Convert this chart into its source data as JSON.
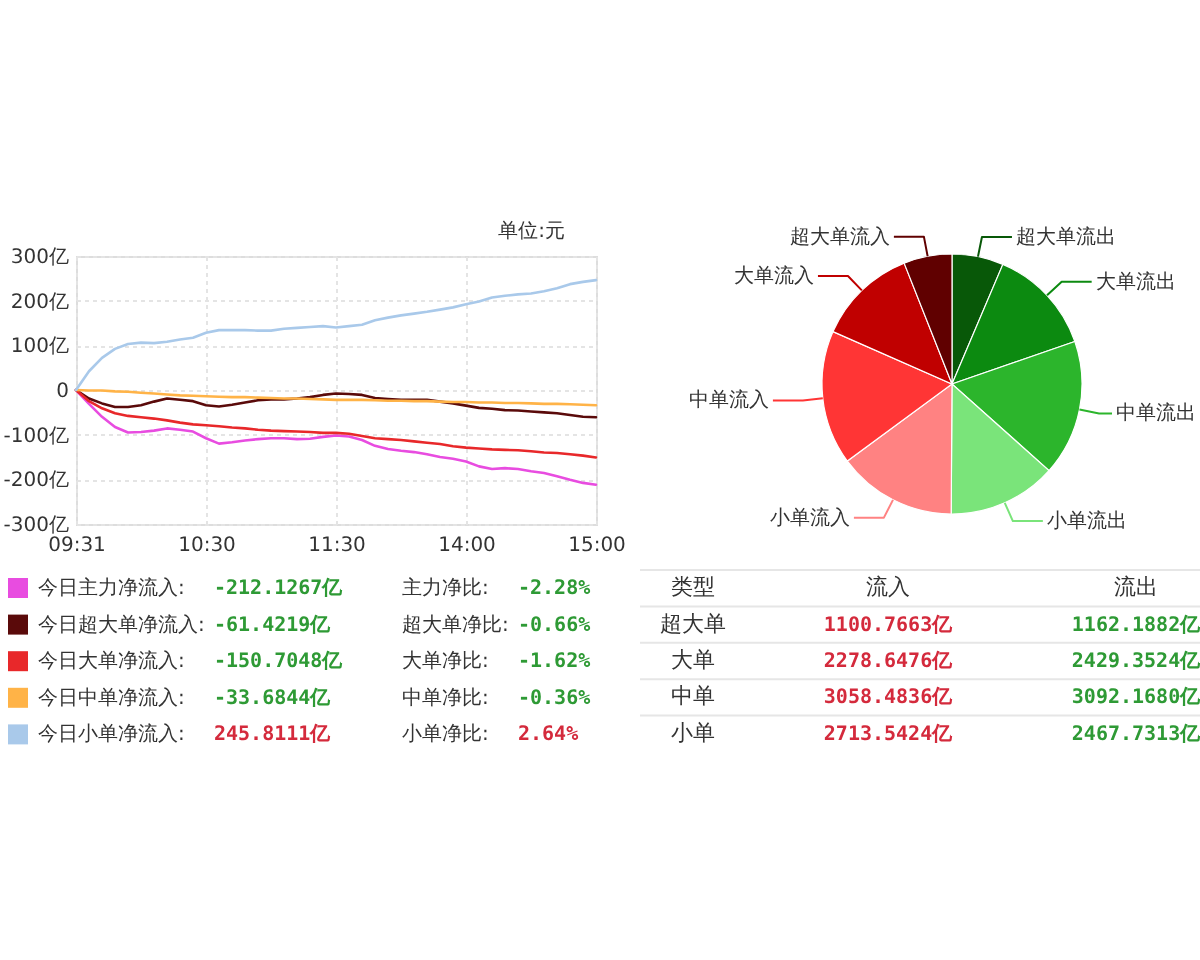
{
  "chart_data": [
    {
      "type": "line",
      "ylabel": "单位:元",
      "grid": true,
      "legend": "bottom",
      "categories": [
        "09:31",
        null,
        null,
        null,
        null,
        null,
        null,
        null,
        null,
        null,
        "10:30",
        null,
        null,
        null,
        null,
        null,
        null,
        null,
        null,
        null,
        "11:30",
        null,
        null,
        null,
        null,
        null,
        null,
        null,
        null,
        null,
        "14:00",
        null,
        null,
        null,
        null,
        null,
        null,
        null,
        null,
        null,
        "15:00"
      ],
      "ylim": [
        -300,
        300
      ],
      "yticks": [
        {
          "value": 300,
          "label": "300亿"
        },
        {
          "value": 200,
          "label": "200亿"
        },
        {
          "value": 100,
          "label": "100亿"
        },
        0,
        {
          "value": -100,
          "label": "-100亿"
        },
        {
          "value": -200,
          "label": "-200亿"
        },
        {
          "value": -300,
          "label": "-300亿"
        }
      ],
      "series": [
        {
          "name": "今日主力净流入:",
          "color": "#e84ce0",
          "values": [
            0,
            -31,
            -60,
            -83,
            -95,
            -94,
            -91,
            -86,
            -89,
            -93,
            -108,
            -120,
            -117,
            -113,
            -110,
            -108,
            -108,
            -110,
            -109,
            -105,
            -102,
            -104,
            -112,
            -125,
            -132,
            -136,
            -139,
            -144,
            -150,
            -154,
            -160,
            -171,
            -177,
            -175,
            -177,
            -182,
            -186,
            -193,
            -201,
            -208,
            -212
          ]
        },
        {
          "name": "今日超大单净流入:",
          "color": "#5a0a0a",
          "values": [
            0,
            -19,
            -30,
            -38,
            -38,
            -34,
            -26,
            -19,
            -22,
            -25,
            -34,
            -37,
            -33,
            -28,
            -23,
            -21,
            -21,
            -19,
            -16,
            -11,
            -8,
            -9,
            -11,
            -18,
            -20,
            -22,
            -22,
            -22,
            -26,
            -30,
            -35,
            -40,
            -42,
            -45,
            -46,
            -48,
            -50,
            -52,
            -56,
            -60,
            -61
          ]
        },
        {
          "name": "今日大单净流入:",
          "color": "#e8282a",
          "values": [
            0,
            -25,
            -41,
            -52,
            -58,
            -61,
            -64,
            -68,
            -73,
            -77,
            -79,
            -81,
            -84,
            -86,
            -89,
            -91,
            -92,
            -93,
            -94,
            -96,
            -96,
            -98,
            -103,
            -108,
            -110,
            -112,
            -115,
            -118,
            -121,
            -126,
            -129,
            -131,
            -133,
            -134,
            -135,
            -137,
            -140,
            -141,
            -144,
            -147,
            -151
          ]
        },
        {
          "name": "今日中单净流入:",
          "color": "#ffb347",
          "values": [
            0,
            -1,
            -1,
            -3,
            -4,
            -6,
            -8,
            -10,
            -12,
            -13,
            -14,
            -15,
            -16,
            -16,
            -17,
            -18,
            -19,
            -19,
            -20,
            -21,
            -22,
            -22,
            -22,
            -23,
            -24,
            -24,
            -25,
            -25,
            -26,
            -27,
            -27,
            -28,
            -28,
            -29,
            -29,
            -30,
            -31,
            -31,
            -32,
            -33,
            -34
          ]
        },
        {
          "name": "今日小单净流入:",
          "color": "#a9c9ea",
          "values": [
            0,
            42,
            72,
            92,
            103,
            106,
            105,
            108,
            113,
            117,
            128,
            134,
            134,
            134,
            133,
            133,
            137,
            139,
            141,
            143,
            140,
            143,
            146,
            156,
            162,
            167,
            171,
            175,
            180,
            185,
            192,
            198,
            207,
            211,
            214,
            216,
            221,
            228,
            237,
            242,
            246
          ]
        }
      ],
      "annotations": [
        "-212.1267亿",
        "主力净比:",
        "-2.28%",
        "-61.4219亿",
        "超大单净比:",
        "-0.66%",
        "-150.7048亿",
        "大单净比:",
        "-1.62%",
        "-33.6844亿",
        "中单净比:",
        "-0.36%",
        "245.8111亿",
        "小单净比:",
        "2.64%"
      ]
    },
    {
      "type": "pie",
      "categories": [
        "超大单流出",
        "大单流出",
        "中单流出",
        "小单流出",
        "小单流入",
        "中单流入",
        "大单流入",
        "超大单流入"
      ],
      "values": [
        6.4,
        13.3,
        16.9,
        13.5,
        14.8,
        16.7,
        12.4,
        6.0
      ],
      "colors": [
        "#085808",
        "#0c8a10",
        "#2cb52c",
        "#7ae47a",
        "#ff8282",
        "#ff3535",
        "#c00000",
        "#600000"
      ],
      "annotations": [
        "类型",
        "流入",
        "流出",
        "超大单",
        "1100.7663亿",
        "1162.1882亿",
        "大单",
        "2278.6476亿",
        "2429.3524亿",
        "中单",
        "3058.4836亿",
        "3092.1680亿",
        "小单",
        "2713.5424亿",
        "2467.7313亿"
      ]
    }
  ]
}
